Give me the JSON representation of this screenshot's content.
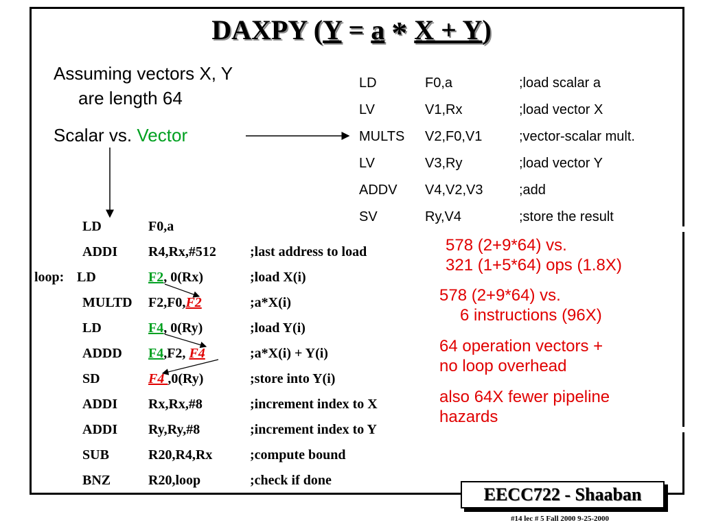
{
  "title": {
    "prefix": "DAXPY (",
    "y1": "Y",
    "eq": " = ",
    "a": "a",
    "star": "*",
    "xy": "X + Y",
    "suffix": ")"
  },
  "left": {
    "line1": "Assuming vectors X, Y",
    "line2": "are length 64",
    "scalar_vs": "Scalar vs.",
    "vector": "Vector"
  },
  "vector_code": [
    {
      "op": "LD",
      "arg": "F0,a",
      "comment": ";load scalar a"
    },
    {
      "op": "LV",
      "arg": "V1,Rx",
      "comment": ";load vector X"
    },
    {
      "op": "MULTS",
      "arg": "V2,F0,V1",
      "comment": ";vector-scalar mult."
    },
    {
      "op": "LV",
      "arg": "V3,Ry",
      "comment": ";load vector Y"
    },
    {
      "op": "ADDV",
      "arg": "V4,V2,V3",
      "comment": ";add"
    },
    {
      "op": "SV",
      "arg": "Ry,V4",
      "comment": ";store the result"
    }
  ],
  "scalar_code": {
    "r0": {
      "op": "LD",
      "arg": "F0,a"
    },
    "r1": {
      "op": "ADDI",
      "arg": "R4,Rx,#512",
      "comment": ";last address to load"
    },
    "r2": {
      "label": "loop:",
      "op": "LD",
      "reg": "F2",
      "rest": ", 0(Rx)",
      "comment": ";load X(i)"
    },
    "r3": {
      "op": "MULTD",
      "pre": "F2,F0,",
      "reg": "F2",
      "comment": ";a*X(i)"
    },
    "r4": {
      "op": "LD",
      "reg": "F4",
      "rest": ", 0(Ry)",
      "comment": ";load Y(i)"
    },
    "r5": {
      "op": "ADDD",
      "reg": "F4",
      "mid": ",F2, ",
      "reg2": "F4",
      "comment": ";a*X(i) + Y(i)"
    },
    "r6": {
      "op": "SD",
      "reg": "F4 ",
      "rest": ",0(Ry)",
      "comment": ";store into Y(i)"
    },
    "r7": {
      "op": "ADDI",
      "arg": "Rx,Rx,#8",
      "comment": ";increment index to X"
    },
    "r8": {
      "op": "ADDI",
      "arg": "Ry,Ry,#8",
      "comment": ";increment index to Y"
    },
    "r9": {
      "op": "SUB",
      "arg": "R20,R4,Rx",
      "comment": ";compute bound"
    },
    "r10": {
      "op": "BNZ",
      "arg": "R20,loop",
      "comment": ";check if done"
    }
  },
  "notes": {
    "n1a": "578 (2+9*64) vs.",
    "n1b": "321 (1+5*64) ops (1.8X)",
    "n2a": "578 (2+9*64) vs.",
    "n2b": "6 instructions (96X)",
    "n3a": "64 operation vectors +",
    "n3b": "no loop overhead",
    "n4a": "also 64X fewer pipeline",
    "n4b": "hazards"
  },
  "badge": "EECC722 - Shaaban",
  "footer": "#14   lec # 5    Fall 2000   9-25-2000",
  "colors": {
    "green": "#00a020",
    "red": "#e00000"
  }
}
